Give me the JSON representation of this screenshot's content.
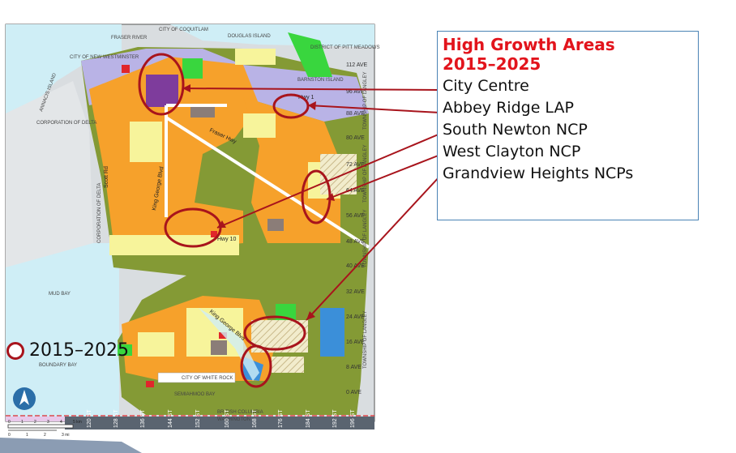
{
  "legend": {
    "title": "High Growth Areas\n2015–2025",
    "items": [
      "City Centre",
      "Abbey Ridge LAP",
      "South Newton NCP",
      "West Clayton NCP",
      "Grandview Heights NCPs"
    ]
  },
  "key": {
    "label": "2015–2025",
    "color": "#a8141c"
  },
  "map_labels": {
    "fraser_river": "FRASER RIVER",
    "city_of_coquitlam": "CITY OF COQUITLAM",
    "douglas_island": "DOUGLAS ISLAND",
    "district_pitt_meadows": "DISTRICT OF PITT MEADOWS",
    "city_new_westminster": "CITY OF NEW WESTMINSTER",
    "annacis_island": "ANNACIS ISLAND",
    "barnston_island": "BARNSTON ISLAND",
    "corporation_of_delta": "CORPORATION OF DELTA",
    "corporation_of_delta_2": "CORPORATION OF DELTA",
    "township_langley_1": "TOWNSHIP OF LANGLEY",
    "township_langley_2": "TOWNSHIP OF LANGLEY",
    "township_langley_3": "TOWNSHIP OF LANGLEY",
    "township_langley_4": "TOWNSHIP OF LANGLEY",
    "mud_bay": "MUD BAY",
    "boundary_bay": "BOUNDARY BAY",
    "city_white_rock": "CITY OF WHITE ROCK",
    "semiahmoo_bay": "SEMIAHMOO BAY",
    "british_columbia": "BRITISH COLUMBIA",
    "washington": "WASHINGTON"
  },
  "roads": {
    "hwy1": "Hwy 1",
    "hwy10": "Hwy 10",
    "fraser_hwy": "Fraser Hwy",
    "scott_rd": "Scott Rd",
    "king_george": "King George Blvd",
    "king_george_2": "King George Blvd"
  },
  "avenues": [
    "112 AVE",
    "96 AVE",
    "88 AVE",
    "80 AVE",
    "72 AVE",
    "64 AVE",
    "56 AVE",
    "48 AVE",
    "40 AVE",
    "32 AVE",
    "24 AVE",
    "16 AVE",
    "8 AVE",
    "0 AVE"
  ],
  "streets": [
    "120 ST",
    "128 ST",
    "136 ST",
    "144 ST",
    "152 ST",
    "160 ST",
    "168 ST",
    "176 ST",
    "184 ST",
    "192 ST",
    "196 ST"
  ],
  "scale": {
    "km_ticks": [
      "0",
      "1",
      "2",
      "3",
      "4",
      "5 km"
    ],
    "mi_ticks": [
      "0",
      "1",
      "2",
      "3 mi"
    ]
  },
  "colors": {
    "growth_circle": "#a8141c",
    "leader_line": "#a8141c",
    "legend_title": "#e2141c",
    "legend_border": "#4a83b5",
    "urban_orange": "#f6a12b",
    "residential_yellow": "#f7f49b",
    "agricultural_green": "#849a35",
    "park_green": "#39d63e",
    "industrial_purple": "#b9b3e6",
    "city_centre_purple": "#7e3c9c",
    "water": "#cfeef6",
    "commercial_red": "#e0262b",
    "institutional_blue": "#3b8fd9"
  },
  "icons": {
    "north_arrow": "north-arrow-icon"
  }
}
